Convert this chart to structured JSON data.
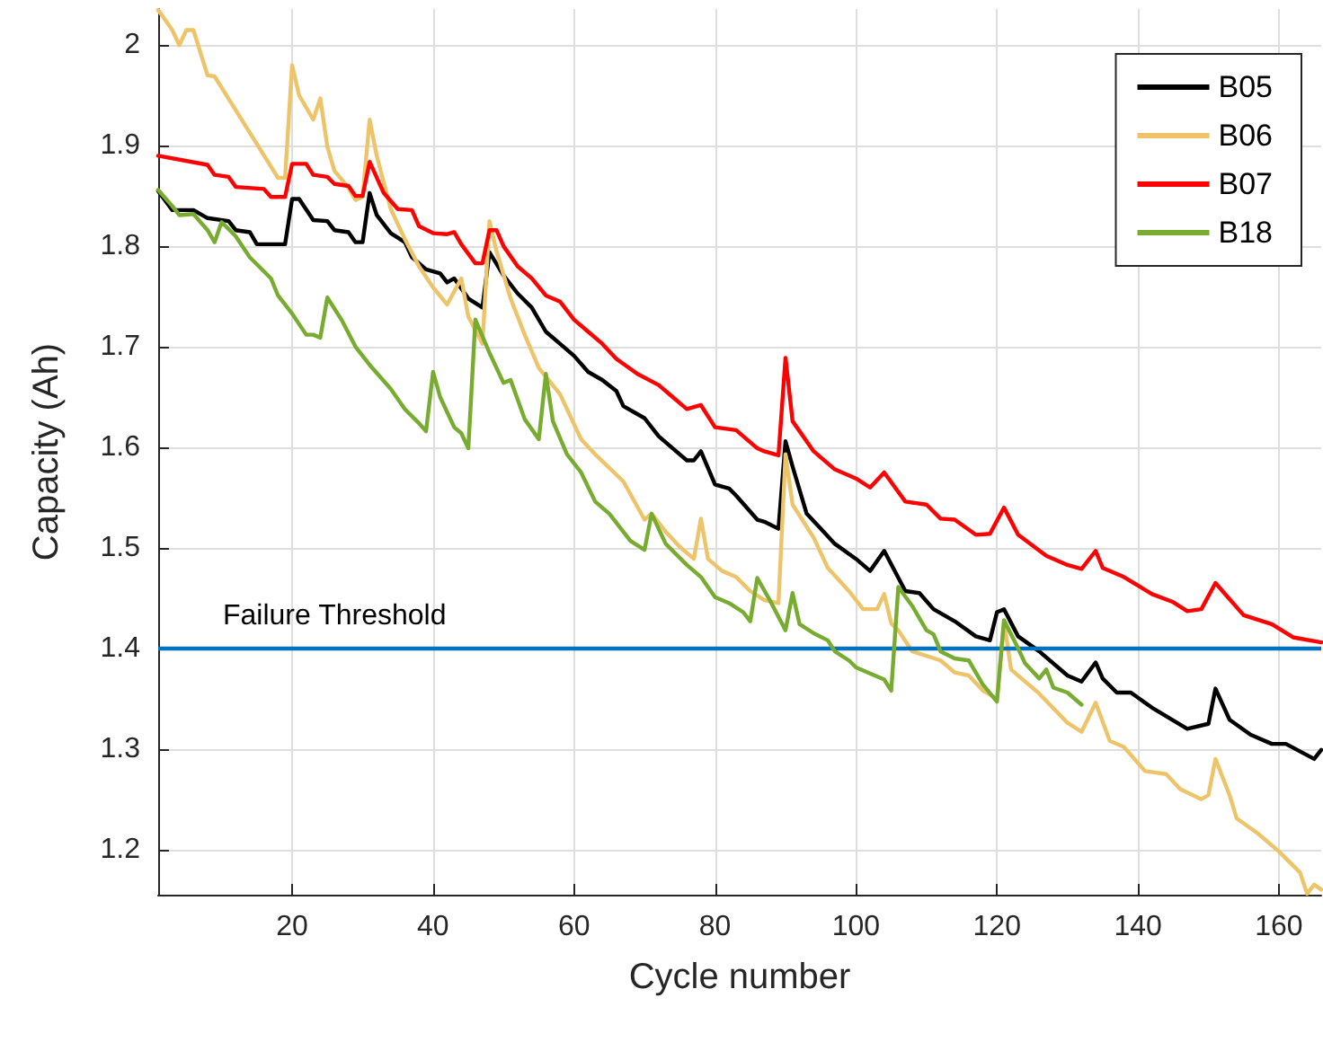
{
  "chart_data": {
    "type": "line",
    "xlabel": "Cycle number",
    "ylabel": "Capacity (Ah)",
    "xlim": [
      1,
      166
    ],
    "ylim": [
      1.155,
      2.036
    ],
    "xticks": [
      20,
      40,
      60,
      80,
      100,
      120,
      140,
      160
    ],
    "yticks": [
      1.2,
      1.3,
      1.4,
      1.5,
      1.6,
      1.7,
      1.8,
      1.9,
      2
    ],
    "grid": true,
    "legend": "top right",
    "marker": "none",
    "line_style": "solid",
    "ref_lines": [
      {
        "axis": "y",
        "value": 1.4,
        "label": "Failure Threshold",
        "color": "#0072bd"
      }
    ],
    "series": [
      {
        "name": "B05",
        "color": "#000000",
        "x": [
          1,
          3,
          6,
          8,
          11,
          12,
          14,
          15,
          19,
          20,
          21,
          23,
          25,
          26,
          28,
          29,
          30,
          31,
          32,
          34,
          36,
          37,
          39,
          41,
          42,
          43,
          45,
          47,
          48,
          50,
          52,
          54,
          56,
          58,
          60,
          62,
          64,
          66,
          67,
          70,
          72,
          74,
          76,
          77,
          78,
          80,
          82,
          83,
          86,
          87,
          89,
          90,
          91,
          93,
          95,
          97,
          100,
          102,
          104,
          107,
          109,
          111,
          114,
          117,
          119,
          120,
          121,
          123,
          126,
          130,
          132,
          134,
          135,
          137,
          139,
          142,
          147,
          150,
          151,
          153,
          156,
          159,
          161,
          165,
          166
        ],
        "values": [
          1.855,
          1.836,
          1.836,
          1.828,
          1.825,
          1.816,
          1.814,
          1.802,
          1.802,
          1.847,
          1.847,
          1.826,
          1.825,
          1.816,
          1.814,
          1.804,
          1.804,
          1.853,
          1.831,
          1.813,
          1.804,
          1.789,
          1.777,
          1.773,
          1.764,
          1.768,
          1.748,
          1.739,
          1.794,
          1.771,
          1.753,
          1.739,
          1.715,
          1.703,
          1.691,
          1.675,
          1.667,
          1.656,
          1.641,
          1.629,
          1.611,
          1.599,
          1.587,
          1.587,
          1.596,
          1.563,
          1.559,
          1.552,
          1.528,
          1.526,
          1.519,
          1.606,
          1.581,
          1.534,
          1.519,
          1.504,
          1.489,
          1.477,
          1.497,
          1.457,
          1.455,
          1.439,
          1.427,
          1.412,
          1.408,
          1.436,
          1.439,
          1.412,
          1.397,
          1.373,
          1.367,
          1.386,
          1.37,
          1.356,
          1.356,
          1.341,
          1.32,
          1.325,
          1.36,
          1.329,
          1.314,
          1.305,
          1.305,
          1.29,
          1.299
        ]
      },
      {
        "name": "B06",
        "color": "#edc46a",
        "x": [
          1,
          2,
          3,
          4,
          5,
          6,
          8,
          9,
          18,
          19,
          20,
          21,
          23,
          24,
          25,
          26,
          28,
          29,
          30,
          31,
          32,
          34,
          36,
          38,
          40,
          42,
          44,
          45,
          47,
          48,
          49,
          51,
          53,
          55,
          58,
          61,
          63,
          67,
          70,
          71,
          73,
          75,
          77,
          78,
          79,
          81,
          83,
          85,
          87,
          89,
          90,
          91,
          94,
          96,
          99,
          101,
          103,
          104,
          105,
          106,
          108,
          112,
          114,
          116,
          118,
          120,
          121,
          122,
          126,
          130,
          132,
          134,
          136,
          138,
          141,
          144,
          146,
          149,
          150,
          151,
          153,
          154,
          157,
          160,
          163,
          164,
          165,
          166
        ],
        "values": [
          2.035,
          2.025,
          2.015,
          2.0,
          2.015,
          2.015,
          1.97,
          1.969,
          1.868,
          1.868,
          1.98,
          1.95,
          1.926,
          1.947,
          1.899,
          1.875,
          1.858,
          1.846,
          1.849,
          1.926,
          1.89,
          1.837,
          1.807,
          1.78,
          1.759,
          1.742,
          1.768,
          1.73,
          1.703,
          1.825,
          1.795,
          1.748,
          1.712,
          1.679,
          1.653,
          1.608,
          1.593,
          1.566,
          1.528,
          1.534,
          1.516,
          1.501,
          1.489,
          1.529,
          1.489,
          1.477,
          1.471,
          1.457,
          1.448,
          1.445,
          1.593,
          1.543,
          1.51,
          1.48,
          1.457,
          1.439,
          1.439,
          1.454,
          1.425,
          1.418,
          1.397,
          1.388,
          1.376,
          1.373,
          1.358,
          1.35,
          1.427,
          1.379,
          1.355,
          1.326,
          1.317,
          1.346,
          1.308,
          1.302,
          1.278,
          1.275,
          1.26,
          1.25,
          1.254,
          1.29,
          1.254,
          1.231,
          1.216,
          1.198,
          1.177,
          1.156,
          1.165,
          1.16
        ]
      },
      {
        "name": "B07",
        "color": "#ff0000",
        "x": [
          1,
          8,
          9,
          11,
          12,
          16,
          17,
          19,
          20,
          22,
          23,
          25,
          26,
          28,
          29,
          30,
          31,
          33,
          35,
          37,
          38,
          40,
          42,
          43,
          44,
          46,
          47,
          48,
          49,
          50,
          52,
          54,
          56,
          58,
          60,
          62,
          64,
          66,
          69,
          72,
          74,
          76,
          78,
          80,
          83,
          86,
          87,
          89,
          90,
          91,
          94,
          97,
          100,
          102,
          104,
          107,
          110,
          112,
          114,
          117,
          119,
          121,
          123,
          127,
          130,
          132,
          134,
          135,
          138,
          142,
          145,
          147,
          149,
          151,
          153,
          155,
          159,
          162,
          166
        ],
        "values": [
          1.89,
          1.881,
          1.871,
          1.869,
          1.859,
          1.857,
          1.849,
          1.849,
          1.882,
          1.882,
          1.871,
          1.869,
          1.862,
          1.86,
          1.85,
          1.85,
          1.884,
          1.853,
          1.837,
          1.836,
          1.82,
          1.813,
          1.812,
          1.814,
          1.802,
          1.783,
          1.783,
          1.816,
          1.816,
          1.8,
          1.78,
          1.768,
          1.751,
          1.745,
          1.727,
          1.715,
          1.703,
          1.688,
          1.673,
          1.662,
          1.65,
          1.638,
          1.642,
          1.62,
          1.617,
          1.599,
          1.596,
          1.592,
          1.689,
          1.626,
          1.596,
          1.578,
          1.569,
          1.56,
          1.575,
          1.546,
          1.543,
          1.529,
          1.528,
          1.513,
          1.514,
          1.54,
          1.513,
          1.492,
          1.483,
          1.479,
          1.497,
          1.48,
          1.471,
          1.454,
          1.446,
          1.437,
          1.439,
          1.465,
          1.449,
          1.433,
          1.424,
          1.411,
          1.406
        ]
      },
      {
        "name": "B18",
        "color": "#77ac30",
        "x": [
          1,
          3,
          4,
          6,
          8,
          9,
          10,
          12,
          14,
          15,
          17,
          18,
          20,
          22,
          23,
          24,
          25,
          27,
          29,
          31,
          34,
          36,
          38,
          39,
          40,
          41,
          43,
          44,
          45,
          46,
          48,
          50,
          51,
          53,
          55,
          56,
          57,
          59,
          61,
          63,
          65,
          68,
          70,
          71,
          73,
          76,
          78,
          80,
          82,
          84,
          85,
          86,
          88,
          90,
          91,
          92,
          94,
          96,
          97,
          99,
          100,
          102,
          104,
          105,
          106,
          108,
          110,
          111,
          112,
          114,
          116,
          118,
          120,
          121,
          123,
          124,
          126,
          127,
          128,
          130,
          132
        ],
        "values": [
          1.856,
          1.84,
          1.831,
          1.832,
          1.816,
          1.804,
          1.824,
          1.81,
          1.789,
          1.782,
          1.768,
          1.751,
          1.733,
          1.712,
          1.712,
          1.709,
          1.749,
          1.727,
          1.7,
          1.682,
          1.658,
          1.638,
          1.624,
          1.616,
          1.675,
          1.65,
          1.62,
          1.614,
          1.599,
          1.727,
          1.694,
          1.664,
          1.667,
          1.628,
          1.608,
          1.673,
          1.626,
          1.593,
          1.575,
          1.546,
          1.534,
          1.507,
          1.498,
          1.534,
          1.504,
          1.483,
          1.471,
          1.451,
          1.445,
          1.436,
          1.427,
          1.47,
          1.445,
          1.418,
          1.455,
          1.424,
          1.415,
          1.408,
          1.397,
          1.388,
          1.381,
          1.375,
          1.369,
          1.358,
          1.461,
          1.442,
          1.418,
          1.414,
          1.397,
          1.39,
          1.388,
          1.364,
          1.347,
          1.428,
          1.4,
          1.385,
          1.37,
          1.379,
          1.361,
          1.356,
          1.344
        ]
      }
    ]
  }
}
